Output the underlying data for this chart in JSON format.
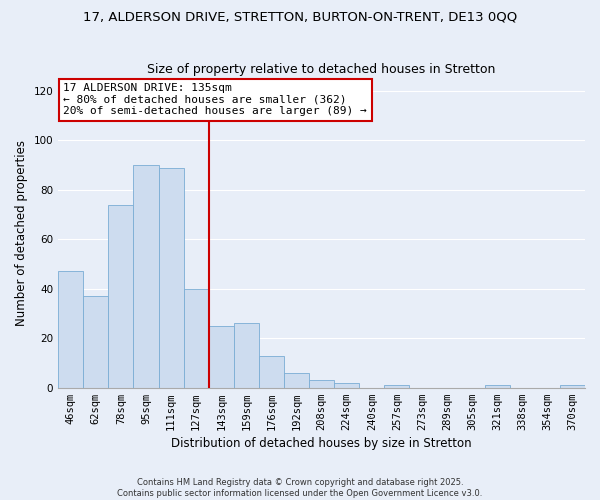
{
  "title": "17, ALDERSON DRIVE, STRETTON, BURTON-ON-TRENT, DE13 0QQ",
  "subtitle": "Size of property relative to detached houses in Stretton",
  "xlabel": "Distribution of detached houses by size in Stretton",
  "ylabel": "Number of detached properties",
  "categories": [
    "46sqm",
    "62sqm",
    "78sqm",
    "95sqm",
    "111sqm",
    "127sqm",
    "143sqm",
    "159sqm",
    "176sqm",
    "192sqm",
    "208sqm",
    "224sqm",
    "240sqm",
    "257sqm",
    "273sqm",
    "289sqm",
    "305sqm",
    "321sqm",
    "338sqm",
    "354sqm",
    "370sqm"
  ],
  "values": [
    47,
    37,
    74,
    90,
    89,
    40,
    25,
    26,
    13,
    6,
    3,
    2,
    0,
    1,
    0,
    0,
    0,
    1,
    0,
    0,
    1
  ],
  "bar_color": "#cddcef",
  "bar_edge_color": "#7aadd4",
  "vline_x_index": 5,
  "vline_color": "#cc0000",
  "annotation_title": "17 ALDERSON DRIVE: 135sqm",
  "annotation_line1": "← 80% of detached houses are smaller (362)",
  "annotation_line2": "20% of semi-detached houses are larger (89) →",
  "annotation_box_color": "#ffffff",
  "annotation_box_edge": "#cc0000",
  "ylim": [
    0,
    125
  ],
  "yticks": [
    0,
    20,
    40,
    60,
    80,
    100,
    120
  ],
  "footer1": "Contains HM Land Registry data © Crown copyright and database right 2025.",
  "footer2": "Contains public sector information licensed under the Open Government Licence v3.0.",
  "bg_color": "#e8eef8",
  "plot_bg_color": "#e8eef8",
  "grid_color": "#ffffff",
  "title_fontsize": 9.5,
  "subtitle_fontsize": 9,
  "axis_label_fontsize": 8.5,
  "tick_fontsize": 7.5,
  "annotation_fontsize": 8
}
